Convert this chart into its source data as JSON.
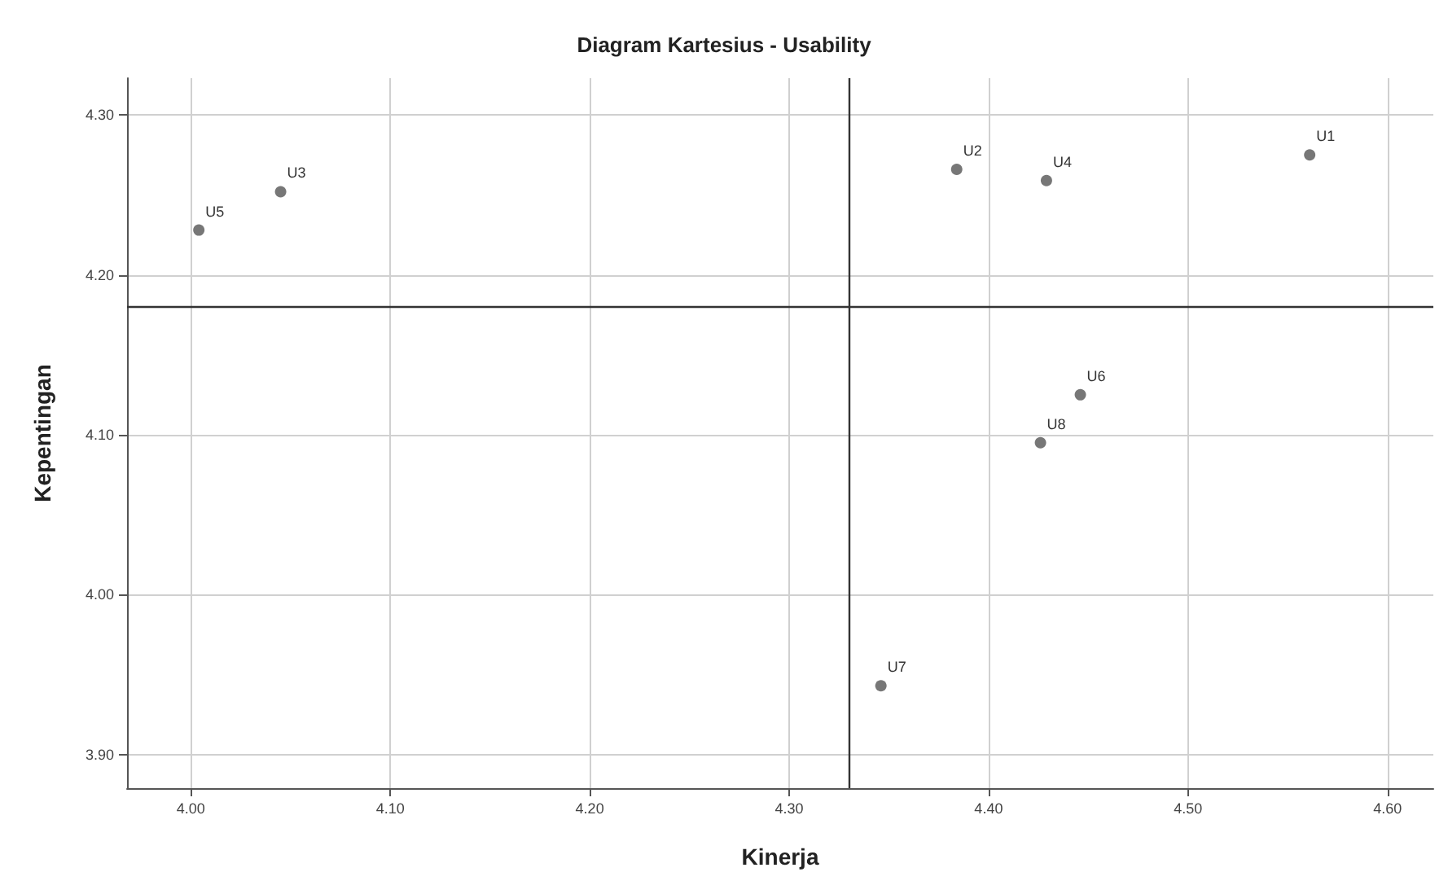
{
  "chart_data": {
    "type": "scatter",
    "title": "Diagram Kartesius - Usability",
    "xlabel": "Kinerja",
    "ylabel": "Kepentingan",
    "x": [
      4.561,
      4.384,
      4.045,
      4.429,
      4.004,
      4.446,
      4.346,
      4.426
    ],
    "series": [
      {
        "color": "#555555",
        "values": [
          4.275,
          4.266,
          4.252,
          4.259,
          4.228,
          4.125,
          3.943,
          4.095
        ]
      }
    ],
    "annotations": [
      {
        "text": "U1",
        "x": 4.561,
        "y": 4.275
      },
      {
        "text": "U2",
        "x": 4.384,
        "y": 4.266
      },
      {
        "text": "U3",
        "x": 4.045,
        "y": 4.252
      },
      {
        "text": "U4",
        "x": 4.429,
        "y": 4.259
      },
      {
        "text": "U5",
        "x": 4.004,
        "y": 4.228
      },
      {
        "text": "U6",
        "x": 4.446,
        "y": 4.125
      },
      {
        "text": "U7",
        "x": 4.346,
        "y": 3.943
      },
      {
        "text": "U8",
        "x": 4.426,
        "y": 4.095
      }
    ],
    "xlim": [
      3.968,
      4.623
    ],
    "xticks": [
      {
        "value": 4,
        "label": "4.00"
      },
      {
        "value": 4.1,
        "label": "4.10"
      },
      {
        "value": 4.2,
        "label": "4.20"
      },
      {
        "value": 4.3,
        "label": "4.30"
      },
      {
        "value": 4.4,
        "label": "4.40"
      },
      {
        "value": 4.5,
        "label": "4.50"
      },
      {
        "value": 4.6,
        "label": "4.60"
      }
    ],
    "ylim": [
      3.879,
      4.323
    ],
    "yticks": [
      {
        "value": 3.9,
        "label": "3.90"
      },
      {
        "value": 4,
        "label": "4.00"
      },
      {
        "value": 4.1,
        "label": "4.10"
      },
      {
        "value": 4.2,
        "label": "4.20"
      },
      {
        "value": 4.3,
        "label": "4.30"
      }
    ],
    "ref_lines": [
      {
        "axis": "x",
        "value": 4.33,
        "color": "#333333"
      },
      {
        "axis": "y",
        "value": 4.18,
        "color": "#333333"
      }
    ],
    "grid": true,
    "marker": "circle"
  }
}
